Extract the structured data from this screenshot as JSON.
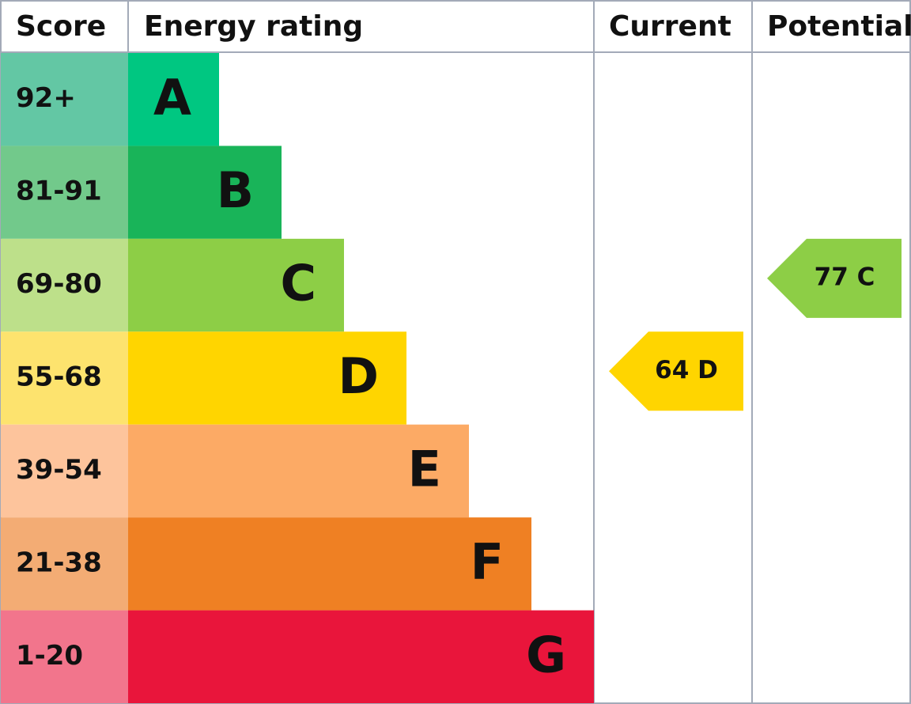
{
  "header": {
    "score": "Score",
    "energy_rating": "Energy rating",
    "current": "Current",
    "potential": "Potential"
  },
  "rows": [
    {
      "score": "92+",
      "band": "A",
      "score_color": "#63c7a4",
      "color": "#00c781"
    },
    {
      "score": "81-91",
      "band": "B",
      "score_color": "#72c98b",
      "color": "#19b459"
    },
    {
      "score": "69-80",
      "band": "C",
      "score_color": "#bde08a",
      "color": "#8dce46"
    },
    {
      "score": "55-68",
      "band": "D",
      "score_color": "#fde36e",
      "color": "#ffd500"
    },
    {
      "score": "39-54",
      "band": "E",
      "score_color": "#fdc49c",
      "color": "#fcaa65"
    },
    {
      "score": "21-38",
      "band": "F",
      "score_color": "#f3ac74",
      "color": "#ef8023"
    },
    {
      "score": "1-20",
      "band": "G",
      "score_color": "#f2758c",
      "color": "#e9153b"
    }
  ],
  "current": "64 D",
  "potential": "77 C"
}
